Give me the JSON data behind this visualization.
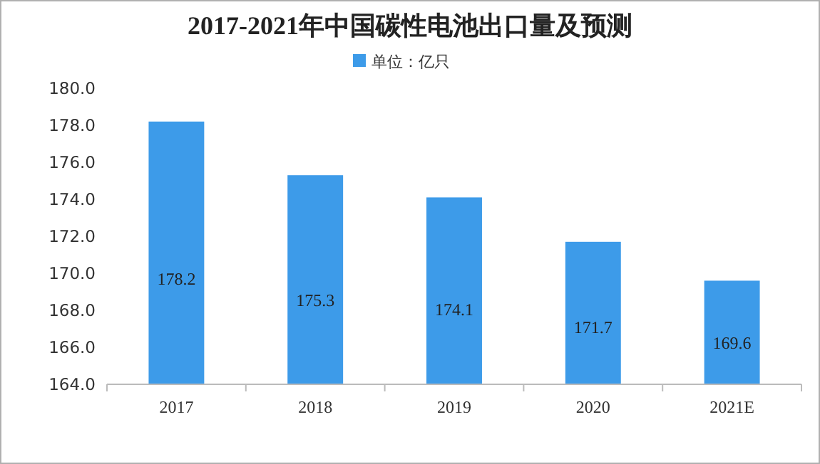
{
  "chart_data": {
    "type": "bar",
    "title": "2017-2021年中国碳性电池出口量及预测",
    "categories": [
      "2017",
      "2018",
      "2019",
      "2020",
      "2021E"
    ],
    "series": [
      {
        "name": "单位：亿只",
        "color": "#3d9be9",
        "values": [
          178.2,
          175.3,
          174.1,
          171.7,
          169.6
        ]
      }
    ],
    "ylim": [
      164,
      180
    ],
    "yticks": [
      {
        "value": 164,
        "label": "164.0"
      },
      {
        "value": 166,
        "label": "166.0"
      },
      {
        "value": 168,
        "label": "168.0"
      },
      {
        "value": 170,
        "label": "170.0"
      },
      {
        "value": 172,
        "label": "172.0"
      },
      {
        "value": 174,
        "label": "174.0"
      },
      {
        "value": 176,
        "label": "176.0"
      },
      {
        "value": 178,
        "label": "178.0"
      },
      {
        "value": 180,
        "label": "180.0"
      }
    ],
    "data_labels": true,
    "legend": "top"
  }
}
